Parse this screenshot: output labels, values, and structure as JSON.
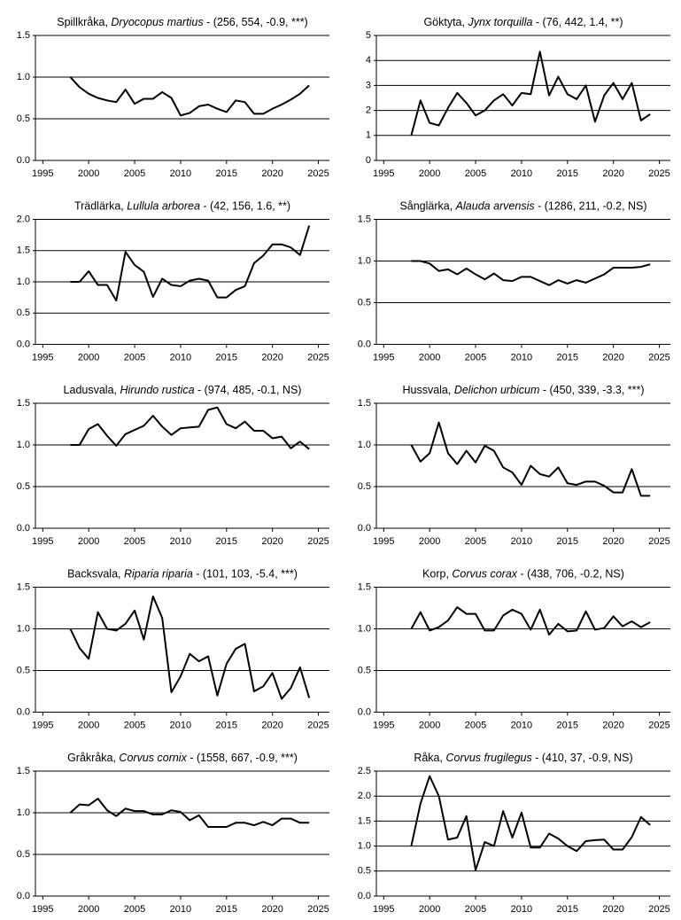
{
  "chart_data": [
    {
      "type": "line",
      "title": [
        "Spillkråka, ",
        "Dryocopus martius",
        " - (256, 554, -0.9, ***)"
      ],
      "x": [
        1998,
        1999,
        2000,
        2001,
        2002,
        2003,
        2004,
        2005,
        2006,
        2007,
        2008,
        2009,
        2010,
        2011,
        2012,
        2013,
        2014,
        2015,
        2016,
        2017,
        2018,
        2019,
        2020,
        2021,
        2022,
        2023,
        2024
      ],
      "values": [
        1.0,
        0.88,
        0.8,
        0.75,
        0.72,
        0.7,
        0.85,
        0.68,
        0.74,
        0.74,
        0.82,
        0.75,
        0.54,
        0.57,
        0.65,
        0.67,
        0.62,
        0.58,
        0.72,
        0.7,
        0.56,
        0.56,
        0.62,
        0.67,
        0.73,
        0.8,
        0.9
      ],
      "color": "#000000",
      "xlim": [
        1994.2,
        2026.2
      ],
      "xticks": [
        1995,
        2000,
        2005,
        2010,
        2015,
        2020,
        2025
      ],
      "ylim": [
        0,
        1.5
      ],
      "yticks": [
        {
          "value": 0,
          "label": "0.0"
        },
        {
          "value": 0.5,
          "label": "0.5"
        },
        {
          "value": 1,
          "label": "1.0"
        },
        {
          "value": 1.5,
          "label": "1.5"
        }
      ],
      "grid": true
    },
    {
      "type": "line",
      "title": [
        "Göktyta, ",
        "Jynx torquilla",
        " - (76, 442, 1.4, **)"
      ],
      "x": [
        1998,
        1999,
        2000,
        2001,
        2002,
        2003,
        2004,
        2005,
        2006,
        2007,
        2008,
        2009,
        2010,
        2011,
        2012,
        2013,
        2014,
        2015,
        2016,
        2017,
        2018,
        2019,
        2020,
        2021,
        2022,
        2023,
        2024
      ],
      "values": [
        1.0,
        2.4,
        1.5,
        1.4,
        2.1,
        2.7,
        2.3,
        1.8,
        2.0,
        2.4,
        2.65,
        2.2,
        2.7,
        2.65,
        4.35,
        2.6,
        3.35,
        2.65,
        2.45,
        3.0,
        1.55,
        2.6,
        3.1,
        2.45,
        3.1,
        1.6,
        1.85
      ],
      "color": "#000000",
      "xlim": [
        1994.2,
        2026.2
      ],
      "xticks": [
        1995,
        2000,
        2005,
        2010,
        2015,
        2020,
        2025
      ],
      "ylim": [
        0,
        5
      ],
      "yticks": [
        0,
        1,
        2,
        3,
        4,
        5
      ],
      "grid": true
    },
    {
      "type": "line",
      "title": [
        "Trädlärka, ",
        "Lullula arborea",
        " - (42, 156, 1.6, **)"
      ],
      "x": [
        1998,
        1999,
        2000,
        2001,
        2002,
        2003,
        2004,
        2005,
        2006,
        2007,
        2008,
        2009,
        2010,
        2011,
        2012,
        2013,
        2014,
        2015,
        2016,
        2017,
        2018,
        2019,
        2020,
        2021,
        2022,
        2023,
        2024
      ],
      "values": [
        1.0,
        1.0,
        1.17,
        0.95,
        0.95,
        0.7,
        1.48,
        1.27,
        1.16,
        0.76,
        1.05,
        0.95,
        0.93,
        1.02,
        1.05,
        1.02,
        0.75,
        0.75,
        0.87,
        0.93,
        1.3,
        1.42,
        1.6,
        1.6,
        1.55,
        1.43,
        1.9
      ],
      "color": "#000000",
      "xlim": [
        1994.2,
        2026.2
      ],
      "xticks": [
        1995,
        2000,
        2005,
        2010,
        2015,
        2020,
        2025
      ],
      "ylim": [
        0,
        2
      ],
      "yticks": [
        {
          "value": 0,
          "label": "0.0"
        },
        {
          "value": 0.5,
          "label": "0.5"
        },
        {
          "value": 1,
          "label": "1.0"
        },
        {
          "value": 1.5,
          "label": "1.5"
        },
        {
          "value": 2,
          "label": "2.0"
        }
      ],
      "grid": true
    },
    {
      "type": "line",
      "title": [
        "Sånglärka, ",
        "Alauda arvensis",
        " - (1286, 211, -0.2, NS)"
      ],
      "x": [
        1998,
        1999,
        2000,
        2001,
        2002,
        2003,
        2004,
        2005,
        2006,
        2007,
        2008,
        2009,
        2010,
        2011,
        2012,
        2013,
        2014,
        2015,
        2016,
        2017,
        2018,
        2019,
        2020,
        2021,
        2022,
        2023,
        2024
      ],
      "values": [
        1.0,
        1.0,
        0.97,
        0.88,
        0.9,
        0.84,
        0.91,
        0.84,
        0.78,
        0.85,
        0.77,
        0.76,
        0.81,
        0.81,
        0.76,
        0.71,
        0.77,
        0.73,
        0.77,
        0.74,
        0.79,
        0.84,
        0.92,
        0.92,
        0.92,
        0.93,
        0.96
      ],
      "color": "#000000",
      "xlim": [
        1994.2,
        2026.2
      ],
      "xticks": [
        1995,
        2000,
        2005,
        2010,
        2015,
        2020,
        2025
      ],
      "ylim": [
        0,
        1.5
      ],
      "yticks": [
        {
          "value": 0,
          "label": "0.0"
        },
        {
          "value": 0.5,
          "label": "0.5"
        },
        {
          "value": 1,
          "label": "1.0"
        },
        {
          "value": 1.5,
          "label": "1.5"
        }
      ],
      "grid": true
    },
    {
      "type": "line",
      "title": [
        "Ladusvala, ",
        "Hirundo rustica",
        " - (974, 485, -0.1, NS)"
      ],
      "x": [
        1998,
        1999,
        2000,
        2001,
        2002,
        2003,
        2004,
        2005,
        2006,
        2007,
        2008,
        2009,
        2010,
        2011,
        2012,
        2013,
        2014,
        2015,
        2016,
        2017,
        2018,
        2019,
        2020,
        2021,
        2022,
        2023,
        2024
      ],
      "values": [
        1.0,
        1.0,
        1.19,
        1.25,
        1.11,
        0.99,
        1.13,
        1.18,
        1.23,
        1.35,
        1.22,
        1.12,
        1.2,
        1.21,
        1.22,
        1.42,
        1.45,
        1.25,
        1.2,
        1.28,
        1.17,
        1.17,
        1.08,
        1.1,
        0.96,
        1.04,
        0.95
      ],
      "color": "#000000",
      "xlim": [
        1994.2,
        2026.2
      ],
      "xticks": [
        1995,
        2000,
        2005,
        2010,
        2015,
        2020,
        2025
      ],
      "ylim": [
        0,
        1.5
      ],
      "yticks": [
        {
          "value": 0,
          "label": "0.0"
        },
        {
          "value": 0.5,
          "label": "0.5"
        },
        {
          "value": 1,
          "label": "1.0"
        },
        {
          "value": 1.5,
          "label": "1.5"
        }
      ],
      "grid": true
    },
    {
      "type": "line",
      "title": [
        "Hussvala, ",
        "Delichon urbicum",
        " - (450, 339, -3.3, ***)"
      ],
      "x": [
        1998,
        1999,
        2000,
        2001,
        2002,
        2003,
        2004,
        2005,
        2006,
        2007,
        2008,
        2009,
        2010,
        2011,
        2012,
        2013,
        2014,
        2015,
        2016,
        2017,
        2018,
        2019,
        2020,
        2021,
        2022,
        2023,
        2024
      ],
      "values": [
        1.0,
        0.8,
        0.9,
        1.27,
        0.9,
        0.77,
        0.93,
        0.79,
        0.99,
        0.93,
        0.73,
        0.67,
        0.52,
        0.75,
        0.65,
        0.62,
        0.73,
        0.54,
        0.52,
        0.56,
        0.56,
        0.51,
        0.43,
        0.43,
        0.71,
        0.39,
        0.39
      ],
      "color": "#000000",
      "xlim": [
        1994.2,
        2026.2
      ],
      "xticks": [
        1995,
        2000,
        2005,
        2010,
        2015,
        2020,
        2025
      ],
      "ylim": [
        0,
        1.5
      ],
      "yticks": [
        {
          "value": 0,
          "label": "0.0"
        },
        {
          "value": 0.5,
          "label": "0.5"
        },
        {
          "value": 1,
          "label": "1.0"
        },
        {
          "value": 1.5,
          "label": "1.5"
        }
      ],
      "grid": true
    },
    {
      "type": "line",
      "title": [
        "Backsvala, ",
        "Riparia riparia",
        " - (101, 103, -5.4, ***)"
      ],
      "x": [
        1998,
        1999,
        2000,
        2001,
        2002,
        2003,
        2004,
        2005,
        2006,
        2007,
        2008,
        2009,
        2010,
        2011,
        2012,
        2013,
        2014,
        2015,
        2016,
        2017,
        2018,
        2019,
        2020,
        2021,
        2022,
        2023,
        2024
      ],
      "values": [
        1.0,
        0.77,
        0.64,
        1.2,
        1.0,
        0.98,
        1.06,
        1.22,
        0.87,
        1.39,
        1.13,
        0.24,
        0.43,
        0.7,
        0.61,
        0.67,
        0.2,
        0.58,
        0.76,
        0.82,
        0.25,
        0.31,
        0.47,
        0.16,
        0.29,
        0.54,
        0.17
      ],
      "color": "#000000",
      "xlim": [
        1994.2,
        2026.2
      ],
      "xticks": [
        1995,
        2000,
        2005,
        2010,
        2015,
        2020,
        2025
      ],
      "ylim": [
        0,
        1.5
      ],
      "yticks": [
        {
          "value": 0,
          "label": "0.0"
        },
        {
          "value": 0.5,
          "label": "0.5"
        },
        {
          "value": 1,
          "label": "1.0"
        },
        {
          "value": 1.5,
          "label": "1.5"
        }
      ],
      "grid": true
    },
    {
      "type": "line",
      "title": [
        "Korp, ",
        "Corvus corax",
        " - (438, 706, -0.2, NS)"
      ],
      "x": [
        1998,
        1999,
        2000,
        2001,
        2002,
        2003,
        2004,
        2005,
        2006,
        2007,
        2008,
        2009,
        2010,
        2011,
        2012,
        2013,
        2014,
        2015,
        2016,
        2017,
        2018,
        2019,
        2020,
        2021,
        2022,
        2023,
        2024
      ],
      "values": [
        1.0,
        1.2,
        0.98,
        1.02,
        1.1,
        1.26,
        1.18,
        1.18,
        0.98,
        0.98,
        1.16,
        1.23,
        1.18,
        0.99,
        1.23,
        0.93,
        1.06,
        0.97,
        0.98,
        1.21,
        0.99,
        1.01,
        1.15,
        1.03,
        1.09,
        1.02,
        1.08
      ],
      "color": "#000000",
      "xlim": [
        1994.2,
        2026.2
      ],
      "xticks": [
        1995,
        2000,
        2005,
        2010,
        2015,
        2020,
        2025
      ],
      "ylim": [
        0,
        1.5
      ],
      "yticks": [
        {
          "value": 0,
          "label": "0.0"
        },
        {
          "value": 0.5,
          "label": "0.5"
        },
        {
          "value": 1,
          "label": "1.0"
        },
        {
          "value": 1.5,
          "label": "1.5"
        }
      ],
      "grid": true
    },
    {
      "type": "line",
      "title": [
        "Gråkråka, ",
        "Corvus cornix",
        " - (1558, 667, -0.9, ***)"
      ],
      "x": [
        1998,
        1999,
        2000,
        2001,
        2002,
        2003,
        2004,
        2005,
        2006,
        2007,
        2008,
        2009,
        2010,
        2011,
        2012,
        2013,
        2014,
        2015,
        2016,
        2017,
        2018,
        2019,
        2020,
        2021,
        2022,
        2023,
        2024
      ],
      "values": [
        1.0,
        1.1,
        1.09,
        1.17,
        1.03,
        0.96,
        1.05,
        1.02,
        1.02,
        0.98,
        0.98,
        1.03,
        1.01,
        0.91,
        0.97,
        0.83,
        0.83,
        0.83,
        0.88,
        0.88,
        0.85,
        0.89,
        0.85,
        0.93,
        0.93,
        0.88,
        0.88
      ],
      "color": "#000000",
      "xlim": [
        1994.2,
        2026.2
      ],
      "xticks": [
        1995,
        2000,
        2005,
        2010,
        2015,
        2020,
        2025
      ],
      "ylim": [
        0,
        1.5
      ],
      "yticks": [
        {
          "value": 0,
          "label": "0.0"
        },
        {
          "value": 0.5,
          "label": "0.5"
        },
        {
          "value": 1,
          "label": "1.0"
        },
        {
          "value": 1.5,
          "label": "1.5"
        }
      ],
      "grid": true
    },
    {
      "type": "line",
      "title": [
        "Råka, ",
        "Corvus frugilegus",
        " - (410, 37, -0.9, NS)"
      ],
      "x": [
        1998,
        1999,
        2000,
        2001,
        2002,
        2003,
        2004,
        2005,
        2006,
        2007,
        2008,
        2009,
        2010,
        2011,
        2012,
        2013,
        2014,
        2015,
        2016,
        2017,
        2018,
        2019,
        2020,
        2021,
        2022,
        2023,
        2024
      ],
      "values": [
        1.0,
        1.85,
        2.4,
        2.0,
        1.13,
        1.17,
        1.6,
        0.52,
        1.08,
        1.0,
        1.7,
        1.17,
        1.67,
        0.97,
        0.97,
        1.25,
        1.15,
        1.0,
        0.9,
        1.1,
        1.12,
        1.13,
        0.93,
        0.93,
        1.18,
        1.58,
        1.42
      ],
      "color": "#000000",
      "xlim": [
        1994.2,
        2026.2
      ],
      "xticks": [
        1995,
        2000,
        2005,
        2010,
        2015,
        2020,
        2025
      ],
      "ylim": [
        0,
        2.5
      ],
      "yticks": [
        {
          "value": 0,
          "label": "0.0"
        },
        {
          "value": 0.5,
          "label": "0.5"
        },
        {
          "value": 1,
          "label": "1.0"
        },
        {
          "value": 1.5,
          "label": "1.5"
        },
        {
          "value": 2,
          "label": "2.0"
        },
        {
          "value": 2.5,
          "label": "2.5"
        }
      ],
      "grid": true
    }
  ]
}
